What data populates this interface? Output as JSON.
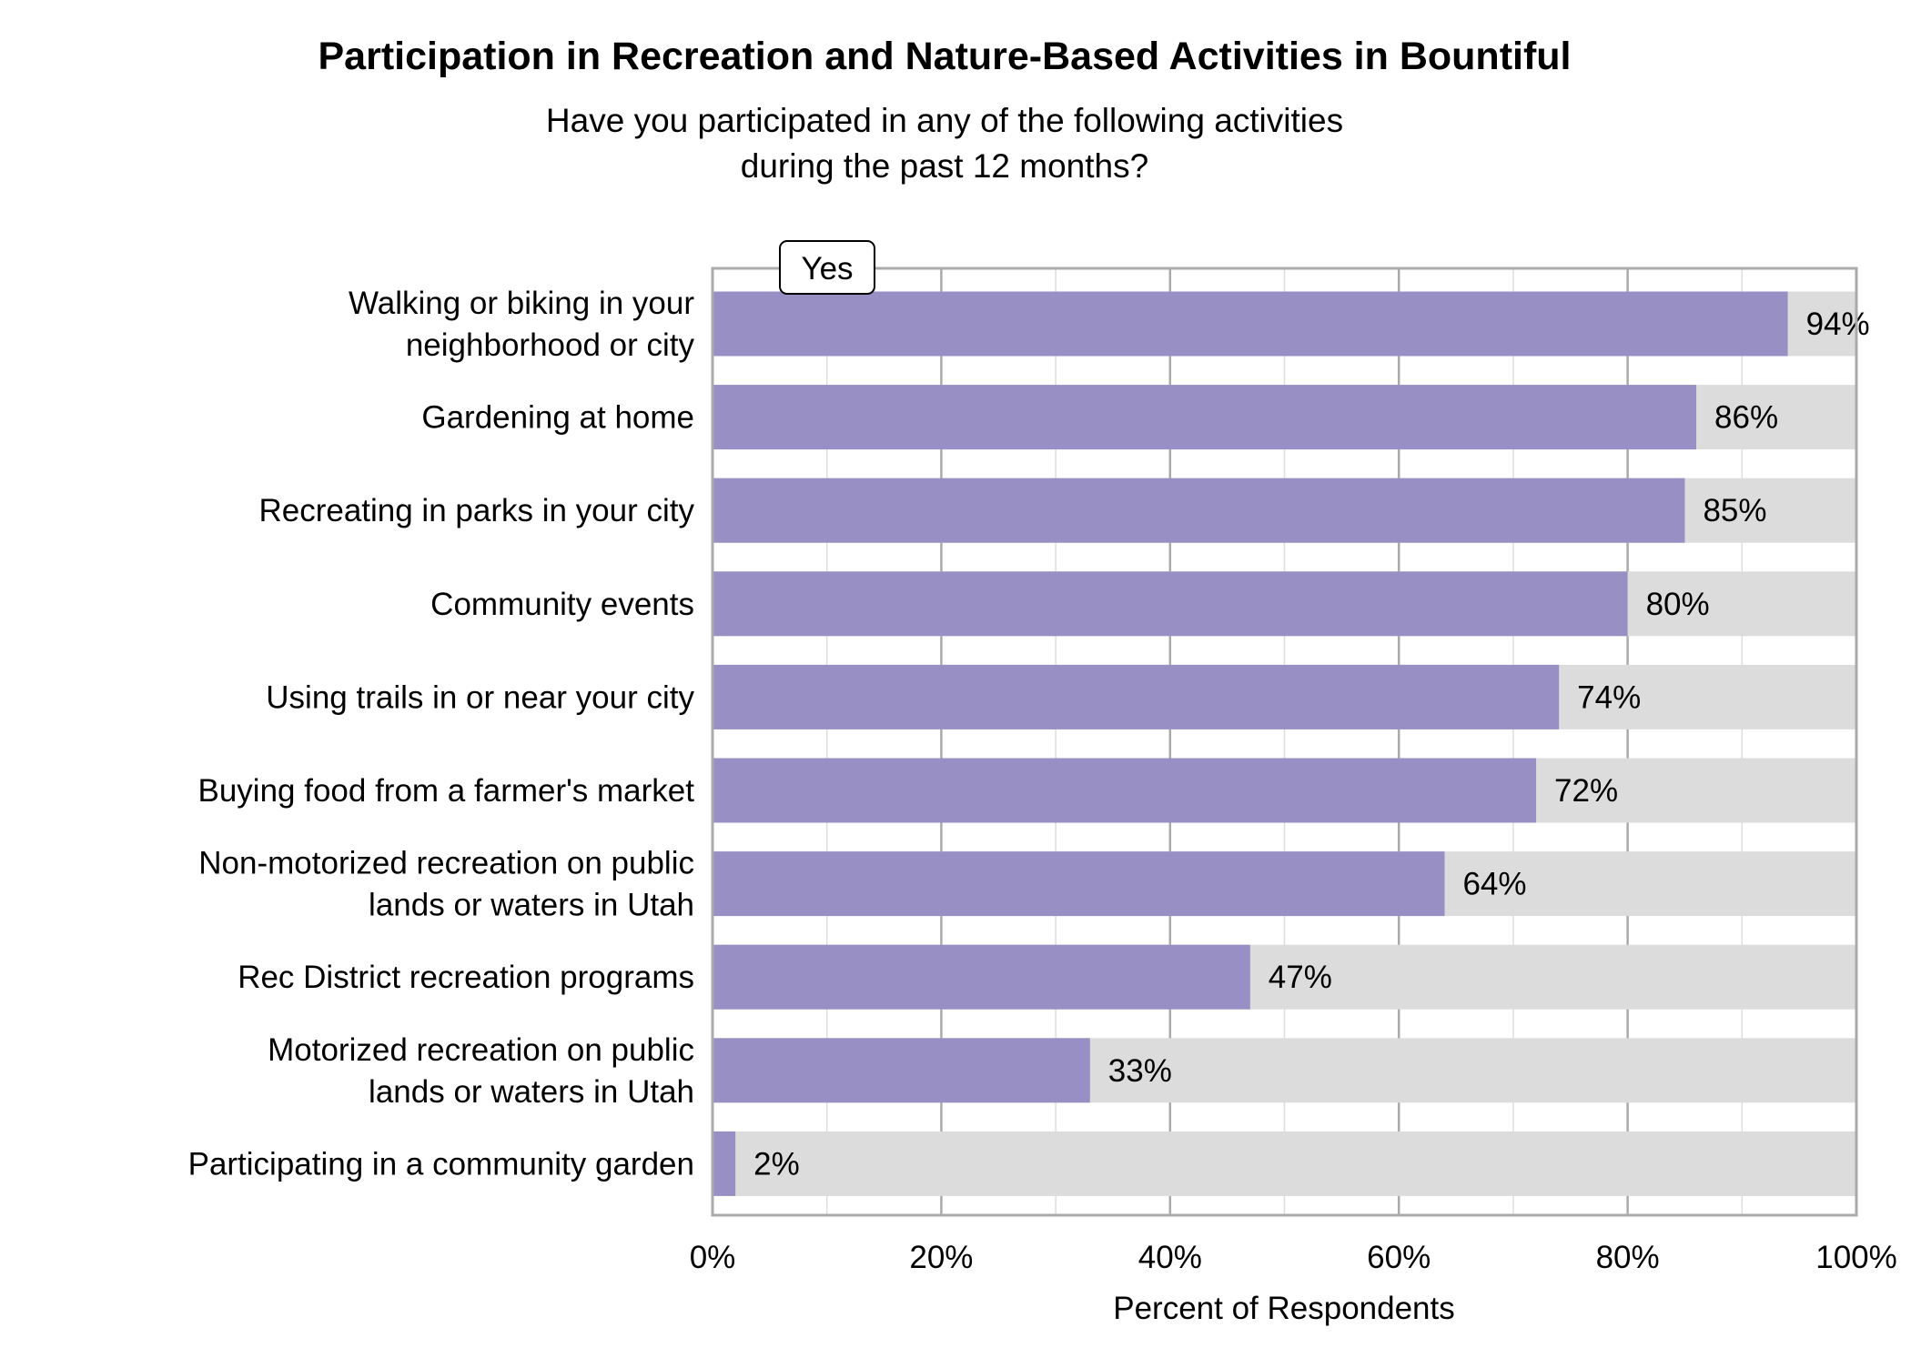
{
  "chart_data": {
    "type": "bar",
    "orientation": "horizontal",
    "title": "Participation in Recreation and Nature-Based Activities in Bountiful",
    "subtitle": [
      "Have you participated in any of the following activities",
      "during the past 12 months?"
    ],
    "xlabel": "Percent of Respondents",
    "ylabel": "",
    "xlim": [
      0,
      100
    ],
    "xticks": [
      "0%",
      "20%",
      "40%",
      "60%",
      "80%",
      "100%"
    ],
    "grid": true,
    "legend": {
      "entries": [
        "Yes"
      ],
      "placement": "top-left"
    },
    "colors": {
      "yes": "#988fc4",
      "remainder": "#dcdcdc",
      "frame": "#aaaaaa"
    },
    "categories": [
      [
        "Walking or biking in your",
        "neighborhood or city"
      ],
      [
        "Gardening at home"
      ],
      [
        "Recreating in parks in your city"
      ],
      [
        "Community events"
      ],
      [
        "Using trails in or near your city"
      ],
      [
        "Buying food from a farmer's market"
      ],
      [
        "Non-motorized recreation on public",
        "lands or waters in Utah"
      ],
      [
        "Rec District recreation programs"
      ],
      [
        "Motorized recreation on public",
        "lands or waters in Utah"
      ],
      [
        "Participating in a community garden"
      ]
    ],
    "series": [
      {
        "name": "Yes",
        "values": [
          94,
          86,
          85,
          80,
          74,
          72,
          64,
          47,
          33,
          2
        ]
      }
    ],
    "data_labels": [
      "94%",
      "86%",
      "85%",
      "80%",
      "74%",
      "72%",
      "64%",
      "47%",
      "33%",
      "2%"
    ]
  }
}
